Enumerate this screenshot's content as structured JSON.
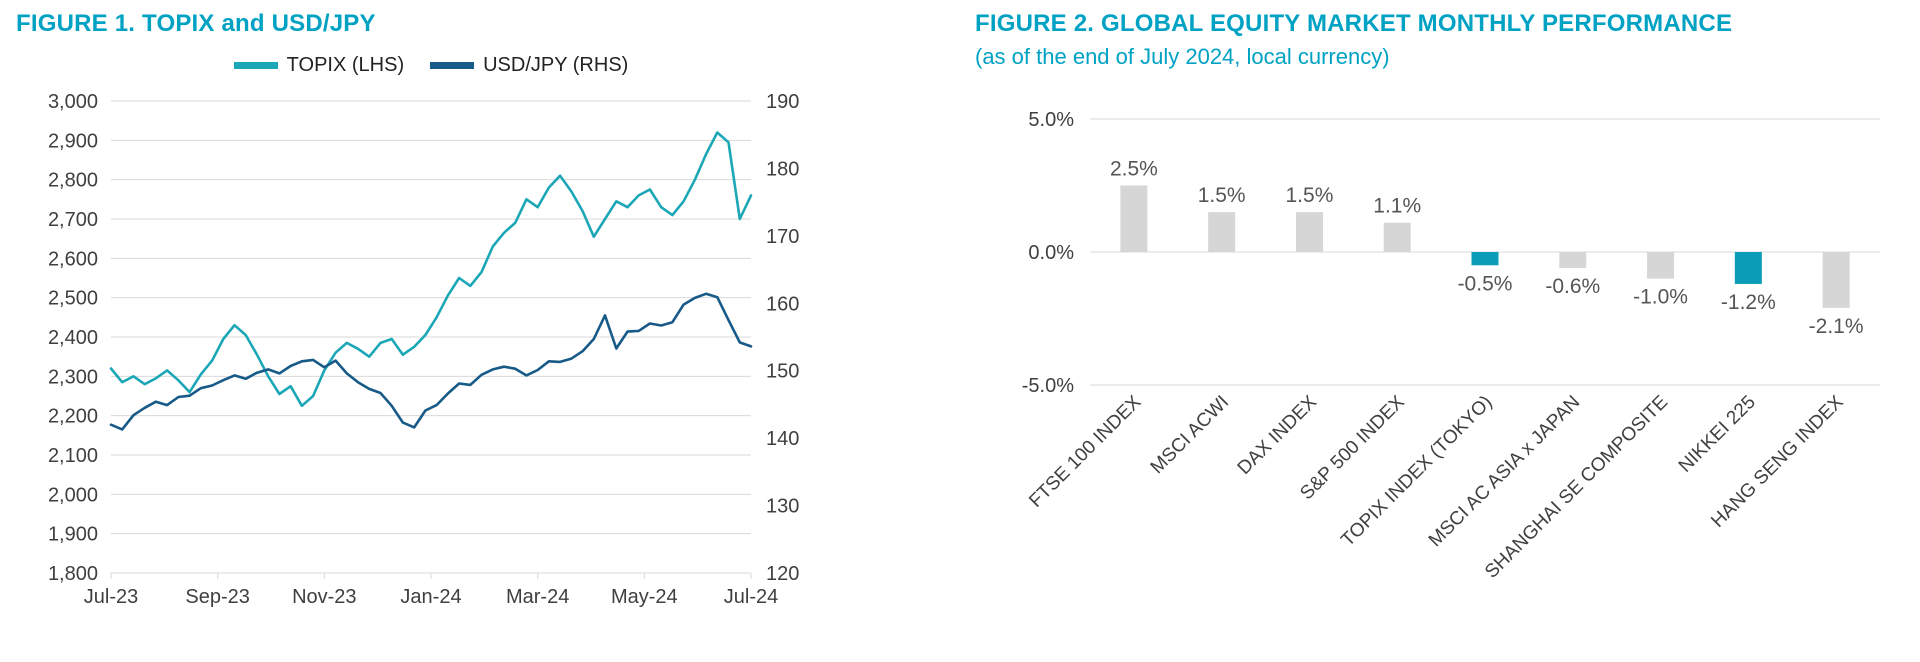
{
  "colors": {
    "title_teal": "#00a2c4",
    "topix_line": "#1ca7b7",
    "usdjpy_line": "#175a88",
    "grid": "#d9d9d9",
    "axis_text": "#3f3f3f",
    "bar_gray": "#d6d6d6",
    "bar_teal": "#0b9cb8",
    "value_label_text": "#555555",
    "category_text": "#404040"
  },
  "chart_data": [
    {
      "type": "line",
      "title": "FIGURE 1. TOPIX and USD/JPY",
      "grid": true,
      "legend_position": "top",
      "x_tick_labels": [
        "Jul-23",
        "Sep-23",
        "Nov-23",
        "Jan-24",
        "Mar-24",
        "May-24",
        "Jul-24"
      ],
      "left_axis": {
        "min": 1800,
        "max": 3000,
        "step": 100
      },
      "right_axis": {
        "min": 120,
        "max": 190,
        "step": 10
      },
      "series": [
        {
          "name": "TOPIX (LHS)",
          "axis": "left",
          "color": "#1ca7b7",
          "values": [
            2320,
            2285,
            2300,
            2280,
            2295,
            2315,
            2290,
            2260,
            2305,
            2340,
            2395,
            2430,
            2405,
            2355,
            2300,
            2255,
            2275,
            2225,
            2250,
            2315,
            2360,
            2385,
            2370,
            2350,
            2385,
            2395,
            2355,
            2375,
            2405,
            2450,
            2505,
            2550,
            2530,
            2565,
            2630,
            2665,
            2690,
            2750,
            2730,
            2780,
            2810,
            2770,
            2720,
            2655,
            2700,
            2745,
            2730,
            2760,
            2775,
            2730,
            2710,
            2745,
            2800,
            2865,
            2920,
            2895,
            2700,
            2760
          ]
        },
        {
          "name": "USD/JPY (RHS)",
          "axis": "right",
          "color": "#175a88",
          "values": [
            142.0,
            141.3,
            143.4,
            144.5,
            145.4,
            144.9,
            146.1,
            146.3,
            147.4,
            147.8,
            148.6,
            149.3,
            148.8,
            149.7,
            150.2,
            149.6,
            150.7,
            151.4,
            151.6,
            150.5,
            151.5,
            149.6,
            148.3,
            147.3,
            146.7,
            144.8,
            142.3,
            141.6,
            144.1,
            144.9,
            146.6,
            148.1,
            147.9,
            149.4,
            150.2,
            150.6,
            150.3,
            149.3,
            150.1,
            151.4,
            151.3,
            151.8,
            152.9,
            154.7,
            158.2,
            153.3,
            155.8,
            155.9,
            157.0,
            156.7,
            157.2,
            159.8,
            160.8,
            161.4,
            160.9,
            157.5,
            154.2,
            153.6
          ]
        }
      ]
    },
    {
      "type": "bar",
      "title": "FIGURE 2. GLOBAL EQUITY MARKET MONTHLY PERFORMANCE",
      "subtitle": "(as of the end of July 2024, local currency)",
      "categories": [
        "FTSE 100 INDEX",
        "MSCI ACWI",
        "DAX INDEX",
        "S&P 500 INDEX",
        "TOPIX INDEX (TOKYO)",
        "MSCI AC ASIA x JAPAN",
        "SHANGHAI SE COMPOSITE",
        "NIKKEI 225",
        "HANG SENG INDEX"
      ],
      "values": [
        2.5,
        1.5,
        1.5,
        1.1,
        -0.5,
        -0.6,
        -1.0,
        -1.2,
        -2.1
      ],
      "value_labels": [
        "2.5%",
        "1.5%",
        "1.5%",
        "1.1%",
        "-0.5%",
        "-0.6%",
        "-1.0%",
        "-1.2%",
        "-2.1%"
      ],
      "highlight_indices": [
        4,
        7
      ],
      "highlighted_categories": [
        "TOPIX INDEX (TOKYO)",
        "NIKKEI 225"
      ],
      "bar_color": "#d6d6d6",
      "highlight_color": "#0b9cb8",
      "ylim": [
        -5,
        5
      ],
      "y_tick_values": [
        5,
        0,
        -5
      ],
      "y_tick_labels": [
        "5.0%",
        "0.0%",
        "-5.0%"
      ],
      "unit": "%"
    }
  ]
}
